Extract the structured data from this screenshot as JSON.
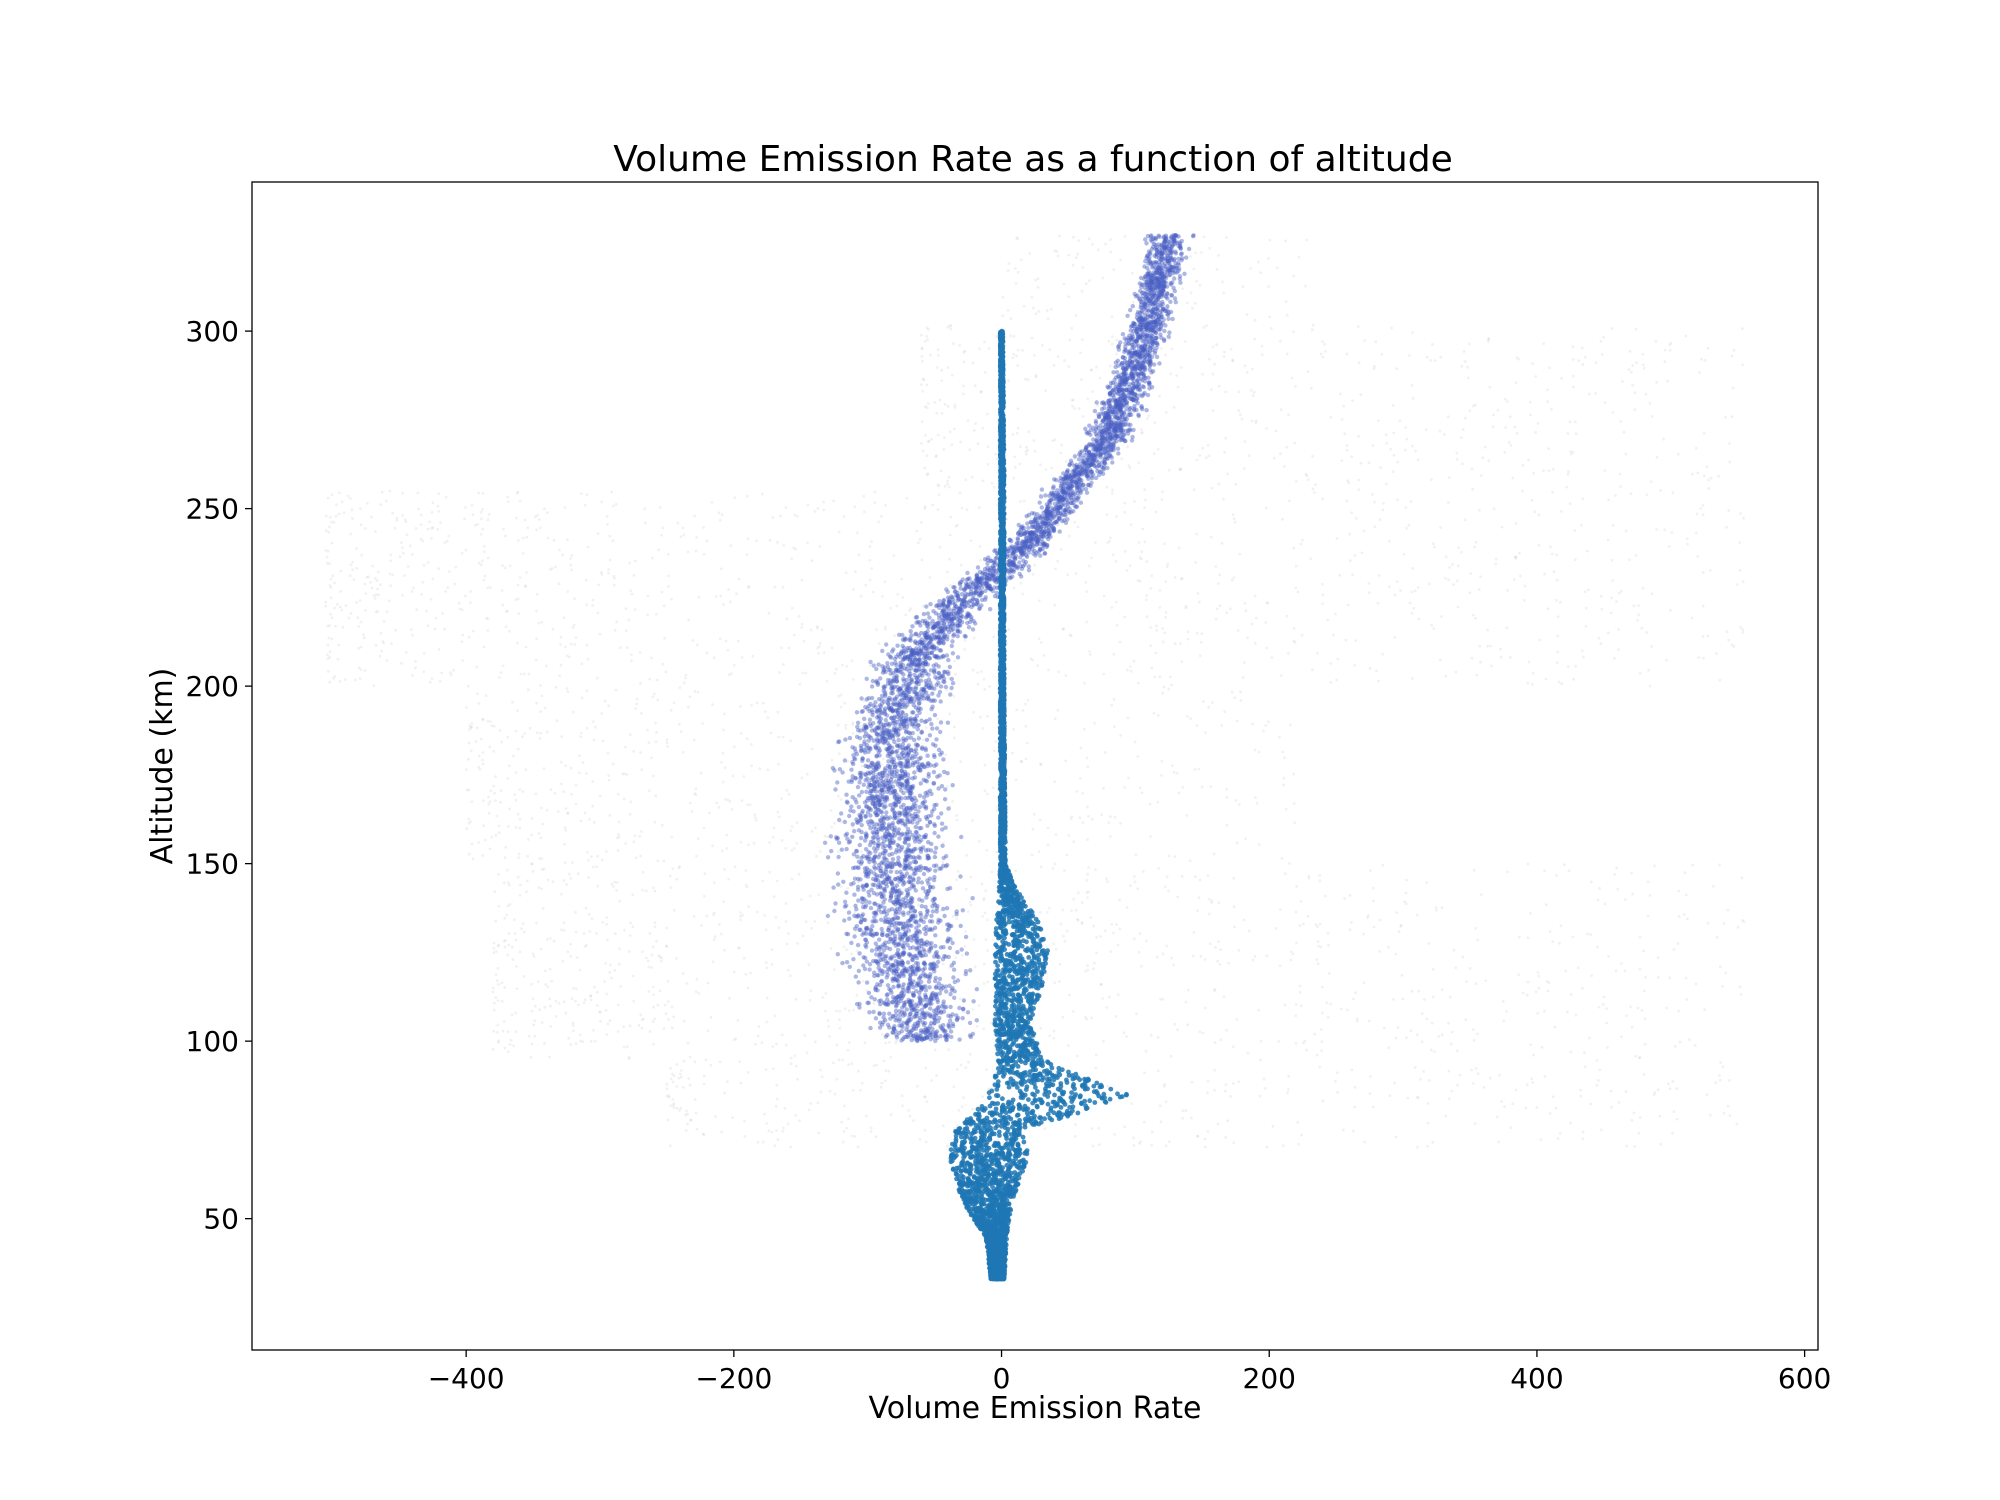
{
  "chart_data": {
    "type": "scatter",
    "title": "Volume Emission Rate as a function of altitude",
    "xlabel": "Volume Emission Rate",
    "ylabel": "Altitude (km)",
    "xlim": [
      -560,
      610
    ],
    "ylim": [
      13,
      342
    ],
    "x_ticks": [
      {
        "value": -400,
        "label": "−400"
      },
      {
        "value": -200,
        "label": "−200"
      },
      {
        "value": 0,
        "label": "0"
      },
      {
        "value": 200,
        "label": "200"
      },
      {
        "value": 400,
        "label": "400"
      },
      {
        "value": 600,
        "label": "600"
      }
    ],
    "y_ticks": [
      {
        "value": 50,
        "label": "50"
      },
      {
        "value": 100,
        "label": "100"
      },
      {
        "value": 150,
        "label": "150"
      },
      {
        "value": 200,
        "label": "200"
      },
      {
        "value": 250,
        "label": "250"
      },
      {
        "value": 300,
        "label": "300"
      }
    ],
    "grid": false,
    "legend": "none",
    "colors": {
      "primary": "#1f77b4",
      "secondary": "#4a5fc4",
      "background_points": "#7a7a7a"
    },
    "series": [
      {
        "role": "primary-dense-points",
        "color": "#1f77b4",
        "profile": [
          {
            "alt": 33,
            "xmin": -8,
            "xmax": 2
          },
          {
            "alt": 45,
            "xmin": -12,
            "xmax": 4
          },
          {
            "alt": 55,
            "xmin": -30,
            "xmax": 8
          },
          {
            "alt": 62,
            "xmin": -35,
            "xmax": 15
          },
          {
            "alt": 68,
            "xmin": -40,
            "xmax": 20
          },
          {
            "alt": 75,
            "xmin": -35,
            "xmax": 15
          },
          {
            "alt": 80,
            "xmin": -20,
            "xmax": 60
          },
          {
            "alt": 85,
            "xmin": -10,
            "xmax": 95
          },
          {
            "alt": 90,
            "xmin": -5,
            "xmax": 60
          },
          {
            "alt": 95,
            "xmin": -3,
            "xmax": 30
          },
          {
            "alt": 105,
            "xmin": -5,
            "xmax": 22
          },
          {
            "alt": 115,
            "xmin": -5,
            "xmax": 30
          },
          {
            "alt": 125,
            "xmin": -5,
            "xmax": 35
          },
          {
            "alt": 135,
            "xmin": -4,
            "xmax": 28
          },
          {
            "alt": 142,
            "xmin": -2,
            "xmax": 12
          },
          {
            "alt": 150,
            "xmin": -1,
            "xmax": 3
          },
          {
            "alt": 200,
            "xmin": -1,
            "xmax": 2
          },
          {
            "alt": 260,
            "xmin": -1,
            "xmax": 2
          },
          {
            "alt": 300,
            "xmin": -1,
            "xmax": 1
          }
        ]
      },
      {
        "role": "secondary-scatter-points",
        "color": "#4a5fc4",
        "profile": [
          {
            "alt": 100,
            "center": -55,
            "spread": 45
          },
          {
            "alt": 110,
            "center": -65,
            "spread": 55
          },
          {
            "alt": 130,
            "center": -75,
            "spread": 60
          },
          {
            "alt": 150,
            "center": -80,
            "spread": 60
          },
          {
            "alt": 170,
            "center": -85,
            "spread": 55
          },
          {
            "alt": 190,
            "center": -80,
            "spread": 45
          },
          {
            "alt": 210,
            "center": -60,
            "spread": 35
          },
          {
            "alt": 225,
            "center": -25,
            "spread": 30
          },
          {
            "alt": 240,
            "center": 20,
            "spread": 25
          },
          {
            "alt": 255,
            "center": 50,
            "spread": 22
          },
          {
            "alt": 270,
            "center": 80,
            "spread": 22
          },
          {
            "alt": 290,
            "center": 100,
            "spread": 22
          },
          {
            "alt": 310,
            "center": 115,
            "spread": 22
          },
          {
            "alt": 327,
            "center": 125,
            "spread": 22
          }
        ]
      },
      {
        "role": "faint-background-points",
        "color": "#7a7a7a",
        "bands": [
          {
            "alt_min": 70,
            "alt_max": 95,
            "x_min": -250,
            "x_max": 555
          },
          {
            "alt_min": 95,
            "alt_max": 150,
            "x_min": -380,
            "x_max": 555
          },
          {
            "alt_min": 150,
            "alt_max": 200,
            "x_min": -400,
            "x_max": 220
          },
          {
            "alt_min": 200,
            "alt_max": 255,
            "x_min": -505,
            "x_max": 555
          },
          {
            "alt_min": 255,
            "alt_max": 302,
            "x_min": -60,
            "x_max": 555
          },
          {
            "alt_min": 302,
            "alt_max": 327,
            "x_min": 0,
            "x_max": 230
          }
        ]
      }
    ]
  }
}
